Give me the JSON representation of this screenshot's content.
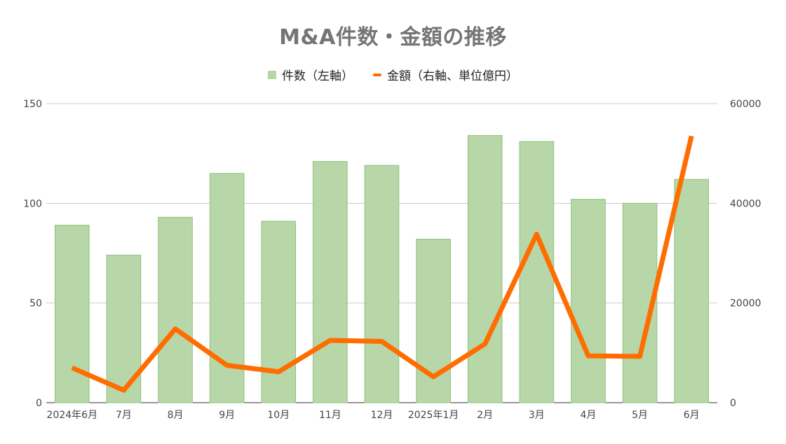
{
  "chart_data": {
    "type": "bar",
    "title": "M&A件数・金額の推移",
    "legend_position": "top",
    "grid": true,
    "categories": [
      "2024年6月",
      "7月",
      "8月",
      "9月",
      "10月",
      "11月",
      "12月",
      "2025年1月",
      "2月",
      "3月",
      "4月",
      "5月",
      "6月"
    ],
    "series": [
      {
        "name": "件数（左軸）",
        "type": "bar",
        "axis": "left",
        "color": "#b7d7a8",
        "values": [
          89,
          74,
          93,
          115,
          91,
          121,
          119,
          82,
          134,
          131,
          102,
          100,
          112
        ]
      },
      {
        "name": "金額（右軸、単位億円）",
        "type": "line",
        "axis": "right",
        "color": "#ff6d01",
        "values": [
          7000,
          2500,
          14800,
          7500,
          6200,
          12500,
          12300,
          5200,
          11800,
          33800,
          9400,
          9300,
          53500
        ]
      }
    ],
    "y_left": {
      "range": [
        0,
        150
      ],
      "ticks": [
        "0",
        "50",
        "100",
        "150"
      ]
    },
    "y_right": {
      "range": [
        0,
        60000
      ],
      "ticks": [
        "0",
        "20000",
        "40000",
        "60000"
      ]
    }
  }
}
